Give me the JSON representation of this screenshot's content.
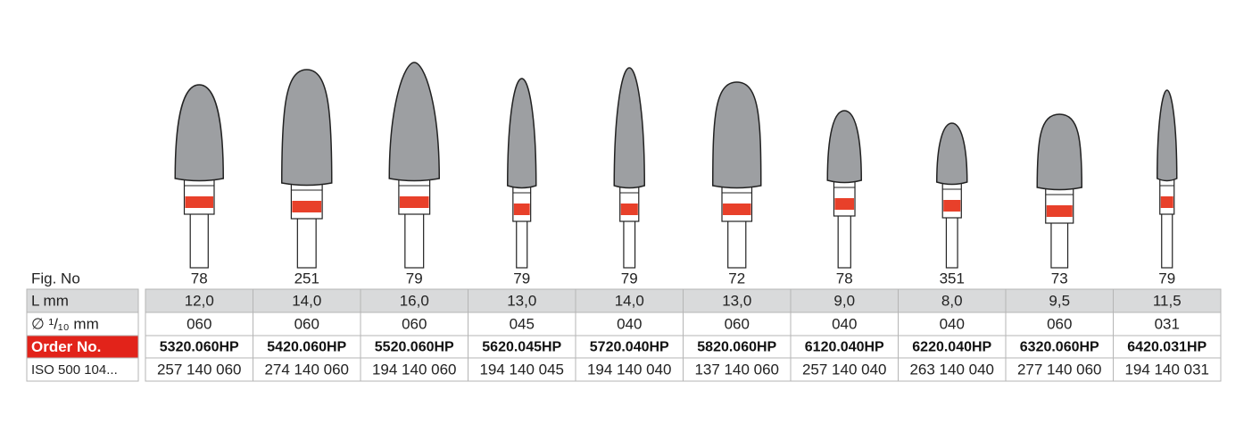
{
  "rows": [
    {
      "label": "Fig. No",
      "cells": [
        "78",
        "251",
        "79",
        "79",
        "79",
        "72",
        "78",
        "351",
        "73",
        "79"
      ]
    },
    {
      "label": "L mm",
      "cells": [
        "12,0",
        "14,0",
        "16,0",
        "13,0",
        "14,0",
        "13,0",
        "9,0",
        "8,0",
        "9,5",
        "11,5"
      ]
    },
    {
      "label": "∅ ¹/₁₀ mm",
      "cells": [
        "060",
        "060",
        "060",
        "045",
        "040",
        "060",
        "040",
        "040",
        "060",
        "031"
      ]
    },
    {
      "label": "Order No.",
      "cells": [
        "5320.060HP",
        "5420.060HP",
        "5520.060HP",
        "5620.045HP",
        "5720.040HP",
        "5820.060HP",
        "6120.040HP",
        "6220.040HP",
        "6320.060HP",
        "6420.031HP"
      ]
    },
    {
      "label": "ISO 500 104...",
      "cells": [
        "257 140 060",
        "274 140 060",
        "194 140 060",
        "194 140 045",
        "194 140 040",
        "137 140 060",
        "257 140 040",
        "263 140 040",
        "277 140 060",
        "194 140 031"
      ]
    }
  ]
}
